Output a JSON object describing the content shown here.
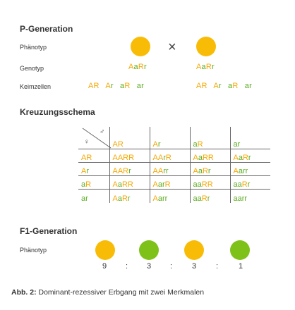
{
  "p_generation": {
    "title": "P-Generation",
    "phenotype_label": "Phänotyp",
    "genotype_label": "Genotyp",
    "gametes_label": "Keimzellen",
    "cross_symbol": "×",
    "parent1": {
      "color": "#f9bc06",
      "genotype": [
        "A",
        "a",
        "R",
        "r"
      ],
      "gametes": [
        "AR",
        "Ar",
        "aR",
        "ar"
      ]
    },
    "parent2": {
      "color": "#f9bc06",
      "genotype": [
        "A",
        "a",
        "R",
        "r"
      ],
      "gametes": [
        "AR",
        "Ar",
        "aR",
        "ar"
      ]
    }
  },
  "kreuzungsschema": {
    "title": "Kreuzungsschema",
    "male_symbol": "♂",
    "female_symbol": "♀",
    "col_headers": [
      "AR",
      "Ar",
      "aR",
      "ar"
    ],
    "rows": [
      {
        "header": "AR",
        "cells": [
          "AARR",
          "AArR",
          "AaRR",
          "AaRr"
        ]
      },
      {
        "header": "Ar",
        "cells": [
          "AARr",
          "AArr",
          "AaRr",
          "Aarr"
        ]
      },
      {
        "header": "aR",
        "cells": [
          "AaRR",
          "AarR",
          "aaRR",
          "aaRr"
        ]
      },
      {
        "header": "ar",
        "cells": [
          "AaRr",
          "Aarr",
          "aaRr",
          "aarr"
        ]
      }
    ]
  },
  "f1_generation": {
    "title": "F1-Generation",
    "phenotype_label": "Phänotyp",
    "phenotypes": [
      {
        "color": "#f9bc06",
        "count": "9"
      },
      {
        "color": "#7ec119",
        "count": "3"
      },
      {
        "color": "#f9bc06",
        "count": "3"
      },
      {
        "color": "#7ec119",
        "count": "1"
      }
    ],
    "separator": ":"
  },
  "caption": {
    "prefix": "Abb. 2:",
    "text": " Dominant-rezessiver Erbgang mit zwei Merkmalen"
  },
  "colors": {
    "dominant_allele": "#f5a800",
    "recessive_allele": "#5aac1e",
    "text": "#333333"
  }
}
